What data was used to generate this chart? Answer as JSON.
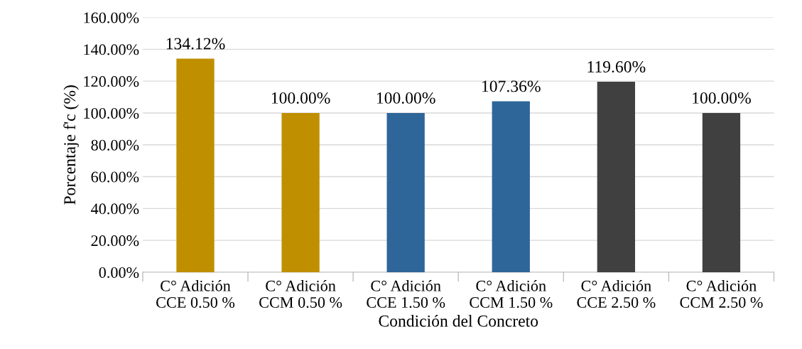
{
  "chart_data": {
    "type": "bar",
    "xlabel": "Condición del Concreto",
    "ylabel": "Porcentaje f'c (%)",
    "categories": [
      "C° Adición\nCCE 0.50 %",
      "C° Adición\nCCM 0.50 %",
      "C° Adición\nCCE 1.50 %",
      "C° Adición\nCCM 1.50 %",
      "C° Adición\nCCE 2.50 %",
      "C° Adición\nCCM 2.50 %"
    ],
    "values": [
      134.12,
      100.0,
      100.0,
      107.36,
      119.6,
      100.0
    ],
    "colors": [
      "#bf8f00",
      "#bf8f00",
      "#2e6699",
      "#2e6699",
      "#404040",
      "#404040"
    ],
    "value_labels": [
      "134.12%",
      "100.00%",
      "100.00%",
      "107.36%",
      "119.60%",
      "100.00%"
    ],
    "ylim": [
      0,
      160
    ],
    "yticks": [
      {
        "value": 0,
        "label": "0.00%"
      },
      {
        "value": 20,
        "label": "20.00%"
      },
      {
        "value": 40,
        "label": "40.00%"
      },
      {
        "value": 60,
        "label": "60.00%"
      },
      {
        "value": 80,
        "label": "80.00%"
      },
      {
        "value": 100,
        "label": "100.00%"
      },
      {
        "value": 120,
        "label": "120.00%"
      },
      {
        "value": 140,
        "label": "140.00%"
      },
      {
        "value": 160,
        "label": "160.00%"
      }
    ],
    "grid": "y",
    "legend": false
  }
}
